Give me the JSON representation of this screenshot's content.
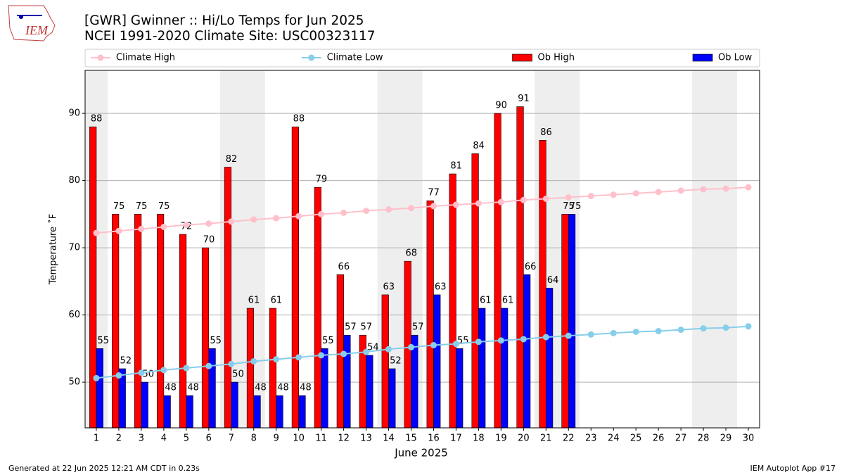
{
  "chart_data": {
    "type": "combo",
    "logo_text": "IEM",
    "title": "[GWR] Gwinner :: Hi/Lo Temps for Jun 2025",
    "subtitle": "NCEI 1991-2020 Climate Site: USC00323117",
    "xlabel": "June 2025",
    "ylabel": "Temperature ˚F",
    "footer_left": "Generated at 22 Jun 2025 12:21 AM CDT in 0.23s",
    "footer_right": "IEM Autoplot App #17",
    "x": [
      1,
      2,
      3,
      4,
      5,
      6,
      7,
      8,
      9,
      10,
      11,
      12,
      13,
      14,
      15,
      16,
      17,
      18,
      19,
      20,
      21,
      22,
      23,
      24,
      25,
      26,
      27,
      28,
      29,
      30
    ],
    "series": [
      {
        "name": "Climate High",
        "color": "#ffc0cb",
        "kind": "line",
        "values": [
          72.2,
          72.5,
          72.8,
          73.1,
          73.4,
          73.6,
          73.9,
          74.2,
          74.4,
          74.7,
          75.0,
          75.2,
          75.5,
          75.7,
          75.9,
          76.2,
          76.4,
          76.6,
          76.8,
          77.1,
          77.3,
          77.5,
          77.7,
          77.9,
          78.1,
          78.3,
          78.5,
          78.7,
          78.8,
          79.0
        ]
      },
      {
        "name": "Climate Low",
        "color": "#87ceeb",
        "kind": "line",
        "values": [
          50.6,
          51.0,
          51.4,
          51.8,
          52.1,
          52.4,
          52.7,
          53.1,
          53.4,
          53.7,
          54.0,
          54.2,
          54.5,
          54.9,
          55.2,
          55.5,
          55.7,
          56.0,
          56.2,
          56.4,
          56.7,
          56.9,
          57.1,
          57.3,
          57.5,
          57.6,
          57.8,
          58.0,
          58.1,
          58.3
        ]
      },
      {
        "name": "Ob High",
        "color": "#ff0000",
        "kind": "bar",
        "values": [
          88,
          75,
          75,
          75,
          72,
          70,
          82,
          61,
          61,
          88,
          79,
          66,
          57,
          63,
          68,
          77,
          81,
          84,
          90,
          91,
          86,
          75,
          null,
          null,
          null,
          null,
          null,
          null,
          null,
          null
        ]
      },
      {
        "name": "Ob Low",
        "color": "#0000ff",
        "kind": "bar",
        "values": [
          55,
          52,
          50,
          48,
          48,
          55,
          50,
          48,
          48,
          48,
          55,
          57,
          54,
          52,
          57,
          63,
          55,
          61,
          61,
          66,
          64,
          75,
          null,
          null,
          null,
          null,
          null,
          null,
          null,
          null
        ]
      }
    ],
    "shaded_x_ranges": [
      [
        0.5,
        1.5
      ],
      [
        6.5,
        8.5
      ],
      [
        13.5,
        15.5
      ],
      [
        20.5,
        22.5
      ],
      [
        27.5,
        29.5
      ]
    ],
    "shade_color": "#eeeeee",
    "xlim": [
      0.5,
      30.5
    ],
    "xticks": [
      1,
      2,
      3,
      4,
      5,
      6,
      7,
      8,
      9,
      10,
      11,
      12,
      13,
      14,
      15,
      16,
      17,
      18,
      19,
      20,
      21,
      22,
      23,
      24,
      25,
      26,
      27,
      28,
      29,
      30
    ],
    "ylim": [
      43.2,
      96.4
    ],
    "yticks": [
      50,
      60,
      70,
      80,
      90
    ],
    "grid": true,
    "legend": "top"
  }
}
